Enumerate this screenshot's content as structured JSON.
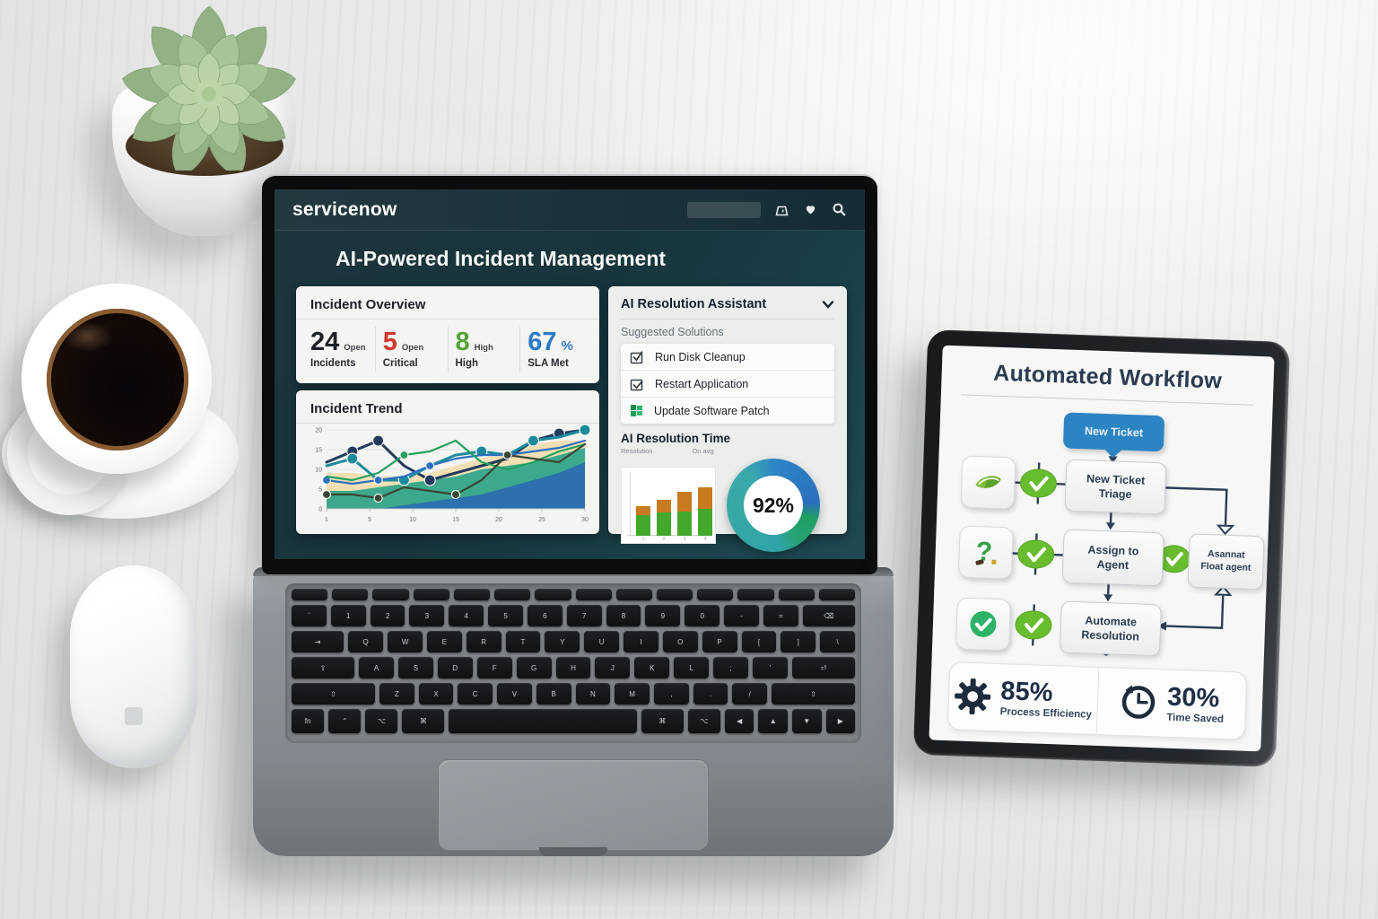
{
  "laptop": {
    "topbar": {
      "brand": "servicenow",
      "icons": [
        "tag-icon",
        "heart-icon",
        "search-icon"
      ]
    },
    "page_title": "AI-Powered Incident Management",
    "overview": {
      "title": "Incident Overview",
      "stats": [
        {
          "value": "24",
          "suffix": "",
          "side": "Open",
          "label": "Incidents",
          "color": "#1d2125"
        },
        {
          "value": "5",
          "suffix": "",
          "side": "Open",
          "label": "Critical",
          "color": "#ce372e"
        },
        {
          "value": "8",
          "suffix": "",
          "side": "High",
          "label": "High",
          "color": "#53a335"
        },
        {
          "value": "67",
          "suffix": "%",
          "side": "",
          "label": "SLA Met",
          "color": "#2a7ac6"
        }
      ]
    },
    "trend_title": "Incident Trend",
    "assistant": {
      "title": "AI Resolution Assistant",
      "subtitle": "Suggested Solutions",
      "items": [
        {
          "icon": "checkbox-check-icon",
          "label": "Run Disk Cleanup"
        },
        {
          "icon": "checkbox-check-icon",
          "label": "Restart Application"
        },
        {
          "icon": "green-grid-icon",
          "label": "Update Software Patch"
        }
      ]
    },
    "resolution": {
      "title": "AI Resolution Time",
      "legend_left": "Resolution",
      "legend_right": "On avg",
      "donut_text": "92%"
    }
  },
  "chart_data": [
    {
      "type": "area",
      "title": "Incident Trend",
      "x_tick_labels": [
        "1",
        "5",
        "10",
        "15",
        "20",
        "25",
        "30"
      ],
      "y_tick_labels": [
        "0",
        "5",
        "10",
        "15",
        "20"
      ],
      "ylim": [
        0,
        22
      ],
      "grid": true,
      "areas": [
        {
          "color": "#f0dcae",
          "values": [
            10,
            10,
            9,
            9,
            10,
            12,
            14,
            16,
            18,
            19,
            19
          ]
        },
        {
          "color": "#2ea489",
          "color2": "#1b6e96",
          "values": [
            5,
            5,
            6,
            7,
            8,
            9,
            11,
            12,
            13,
            15,
            17
          ]
        },
        {
          "color": "#2a6cb0",
          "values": [
            0,
            0,
            0,
            1,
            2,
            3,
            4,
            6,
            8,
            10,
            13
          ]
        }
      ],
      "series": [
        {
          "color": "#223a5e",
          "values": [
            13,
            16,
            19,
            12,
            8,
            10,
            12,
            14,
            19,
            21,
            22
          ],
          "dots": [
            1,
            2,
            4,
            8,
            9,
            10
          ]
        },
        {
          "color": "#1b8b9c",
          "values": [
            12,
            14,
            8,
            8,
            12,
            15,
            16,
            15,
            19,
            20,
            22
          ],
          "dots": [
            1,
            3,
            6,
            8,
            10
          ]
        },
        {
          "color": "#2d6fc1",
          "values": [
            8,
            7,
            8,
            9,
            12,
            14,
            15,
            15,
            16,
            17,
            19
          ],
          "dots": [
            0,
            2,
            4
          ]
        },
        {
          "color": "#21a05c",
          "values": [
            9,
            8,
            10,
            15,
            16,
            19,
            13,
            11,
            13,
            16,
            18
          ],
          "dots": [
            3
          ]
        },
        {
          "color": "#3a4634",
          "values": [
            4,
            4,
            3,
            6,
            5,
            4,
            8,
            15,
            14,
            13,
            18
          ],
          "dots": [
            0,
            2,
            5,
            7
          ]
        }
      ]
    },
    {
      "type": "bar",
      "stacked": true,
      "categories": [
        "1",
        "2",
        "3",
        "4"
      ],
      "series": [
        {
          "name": "bottom",
          "color": "#43a82c",
          "values": [
            32,
            36,
            38,
            42
          ]
        },
        {
          "name": "top",
          "color": "#c87a20",
          "values": [
            14,
            20,
            30,
            33
          ]
        }
      ],
      "ylim": [
        0,
        100
      ]
    },
    {
      "type": "donut",
      "value": 92,
      "label": "92%",
      "ring_colors": [
        "#2e86c5",
        "#1f9e63",
        "#2fa3a8"
      ]
    }
  ],
  "tablet": {
    "title": "Automated Workflow",
    "bubble": "New Ticket",
    "boxes": {
      "triage": [
        "New Ticket",
        "Triage"
      ],
      "assign": [
        "Assign to",
        "Agent"
      ],
      "escalate": [
        "Asannat",
        "Float agent"
      ],
      "automate": [
        "Automate",
        "Resolution"
      ]
    },
    "stats": [
      {
        "icon": "gear-icon",
        "value": "85%",
        "label": "Process Efficiency"
      },
      {
        "icon": "clock-icon",
        "value": "30%",
        "label": "Time Saved"
      }
    ]
  },
  "keyboard": {
    "rows": [
      [
        "",
        "",
        "",
        "",
        "",
        "",
        "",
        "",
        "",
        "",
        "",
        "",
        "",
        ""
      ],
      [
        "`",
        "1",
        "2",
        "3",
        "4",
        "5",
        "6",
        "7",
        "8",
        "9",
        "0",
        "-",
        "=",
        {
          "t": "⌫",
          "w": 1.5
        }
      ],
      [
        {
          "t": "⇥",
          "w": 1.5
        },
        "Q",
        "W",
        "E",
        "R",
        "T",
        "Y",
        "U",
        "I",
        "O",
        "P",
        "[",
        "]",
        "\\"
      ],
      [
        {
          "t": "⇪",
          "w": 1.8
        },
        "A",
        "S",
        "D",
        "F",
        "G",
        "H",
        "J",
        "K",
        "L",
        ";",
        "'",
        {
          "t": "⏎",
          "w": 1.8
        }
      ],
      [
        {
          "t": "⇧",
          "w": 2.4
        },
        "Z",
        "X",
        "C",
        "V",
        "B",
        "N",
        "M",
        ",",
        ".",
        "/",
        {
          "t": "⇧",
          "w": 2.4
        }
      ],
      [
        "fn",
        "⌃",
        "⌥",
        {
          "t": "⌘",
          "w": 1.3
        },
        {
          "t": "",
          "w": 5.8
        },
        {
          "t": "⌘",
          "w": 1.3
        },
        "⌥",
        {
          "t": "◀",
          "w": 0.9
        },
        {
          "t": "▲",
          "w": 0.9
        },
        {
          "t": "▼",
          "w": 0.9
        },
        {
          "t": "▶",
          "w": 0.9
        }
      ]
    ]
  }
}
